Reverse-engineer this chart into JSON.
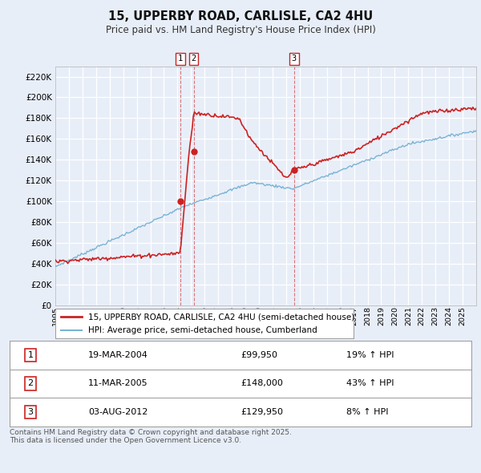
{
  "title": "15, UPPERBY ROAD, CARLISLE, CA2 4HU",
  "subtitle": "Price paid vs. HM Land Registry's House Price Index (HPI)",
  "background_color": "#e8eef8",
  "plot_bg_color": "#e8eef8",
  "grid_color": "#ffffff",
  "sale1": {
    "date_decimal": 2004.215,
    "price": 99950,
    "label": "1",
    "pct": "19% ↑ HPI",
    "date_str": "19-MAR-2004"
  },
  "sale2": {
    "date_decimal": 2005.192,
    "price": 148000,
    "label": "2",
    "pct": "43% ↑ HPI",
    "date_str": "11-MAR-2005"
  },
  "sale3": {
    "date_decimal": 2012.589,
    "price": 129950,
    "label": "3",
    "pct": "8% ↑ HPI",
    "date_str": "03-AUG-2012"
  },
  "legend_entry1": "15, UPPERBY ROAD, CARLISLE, CA2 4HU (semi-detached house)",
  "legend_entry2": "HPI: Average price, semi-detached house, Cumberland",
  "footer": "Contains HM Land Registry data © Crown copyright and database right 2025.\nThis data is licensed under the Open Government Licence v3.0.",
  "hpi_color": "#7ab3d4",
  "price_color": "#cc2222",
  "ylim": [
    0,
    230000
  ],
  "yticks": [
    0,
    20000,
    40000,
    60000,
    80000,
    100000,
    120000,
    140000,
    160000,
    180000,
    200000,
    220000
  ],
  "x_start_year": 1995,
  "x_end_year": 2026
}
